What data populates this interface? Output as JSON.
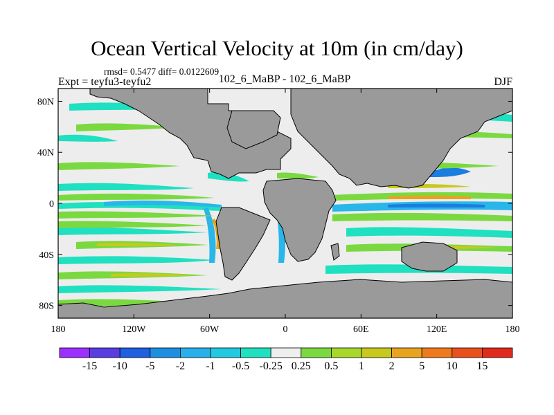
{
  "title": "Ocean Vertical Velocity at 10m (in cm/day)",
  "stats": "rmsd= 0.5477  diff= 0.0122609",
  "left_label": "Expt = teyfu3-teyfu2",
  "center_label": "102_6_MaBP - 102_6_MaBP",
  "right_label": "DJF",
  "colors": {
    "land": "#9a9a9a",
    "ocean_neutral": "#ededed",
    "teal": "#1fe0c0",
    "cyan": "#29b6e8",
    "blue": "#1a7de0",
    "green": "#7ad940",
    "yellow": "#c8c81e",
    "orange": "#e8a41e"
  },
  "chart_data": {
    "type": "heatmap",
    "xlabel": "",
    "ylabel": "",
    "x_range": [
      -180,
      180
    ],
    "y_range": [
      -90,
      90
    ],
    "x_ticks": [
      {
        "value": -180,
        "label": "180"
      },
      {
        "value": -120,
        "label": "120W"
      },
      {
        "value": -60,
        "label": "60W"
      },
      {
        "value": 0,
        "label": "0"
      },
      {
        "value": 60,
        "label": "60E"
      },
      {
        "value": 120,
        "label": "120E"
      },
      {
        "value": 180,
        "label": "180"
      }
    ],
    "y_ticks": [
      {
        "value": 80,
        "label": "80N"
      },
      {
        "value": 40,
        "label": "40N"
      },
      {
        "value": 0,
        "label": "0"
      },
      {
        "value": -40,
        "label": "40S"
      },
      {
        "value": -80,
        "label": "80S"
      }
    ],
    "colorbar": {
      "levels": [
        "-15",
        "-10",
        "-5",
        "-2",
        "-1",
        "-0.5",
        "-0.25",
        "0.25",
        "0.5",
        "1",
        "2",
        "5",
        "10",
        "15"
      ],
      "colors": [
        "#9b30ff",
        "#5a3de0",
        "#1f5fe0",
        "#1e8fe0",
        "#2ab0e8",
        "#22c9e0",
        "#1fe0c0",
        "#efefef",
        "#7ad940",
        "#a8d82a",
        "#c8c81e",
        "#e8a41e",
        "#ee7a1e",
        "#e8501e",
        "#e02a1e"
      ]
    }
  }
}
